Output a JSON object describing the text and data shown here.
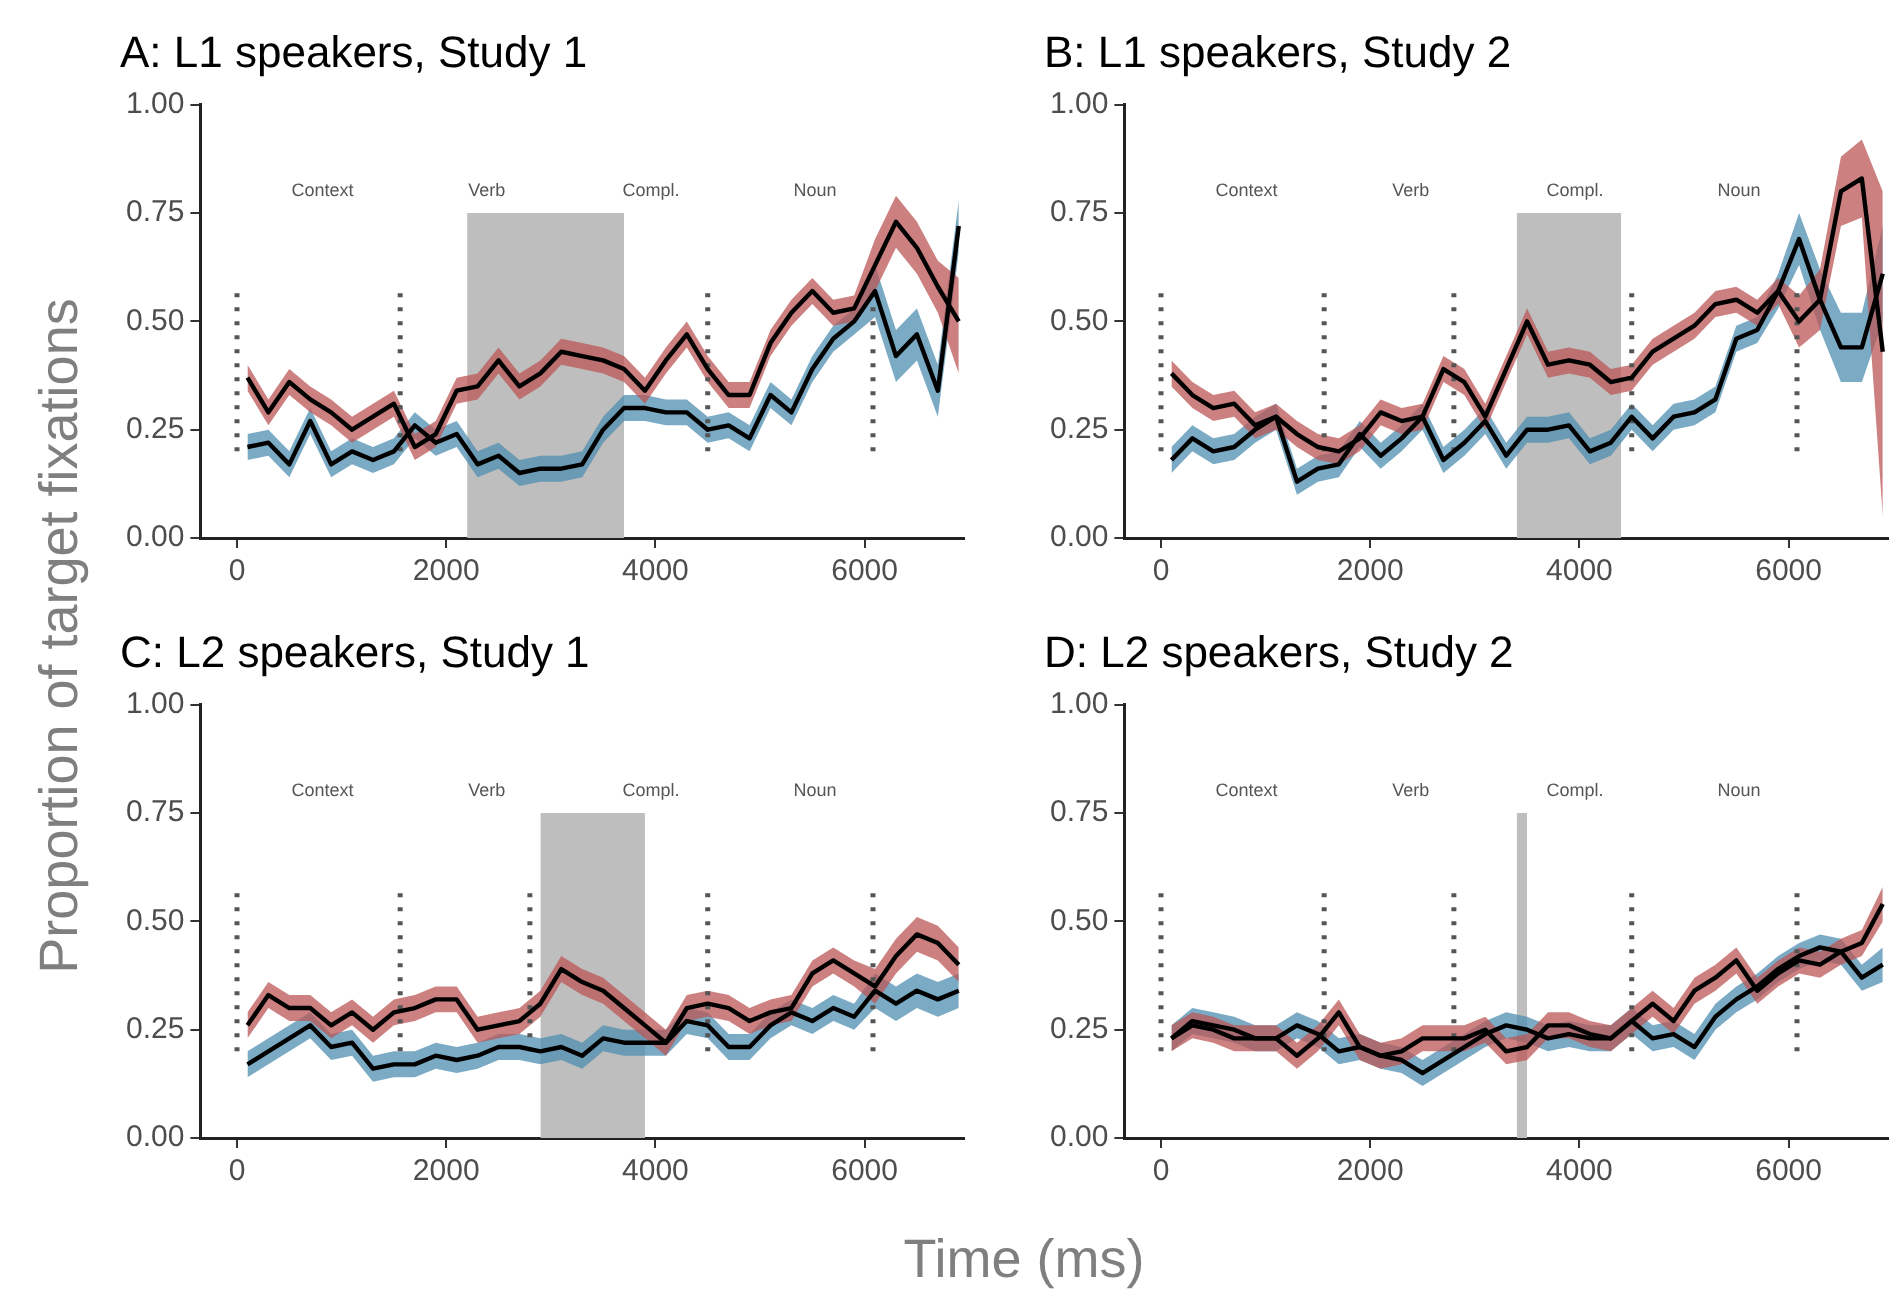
{
  "chart_data": [
    {
      "type": "line",
      "title": "A: L1 speakers, Study 1",
      "ylabel": "Proportion of target fixations",
      "xlim": [
        -350,
        6950
      ],
      "xticks": [
        0,
        2000,
        4000,
        6000
      ],
      "ylim": [
        0,
        1
      ],
      "yticks": [
        {
          "value": 0,
          "label": "0.00"
        },
        {
          "value": 0.25,
          "label": "0.25"
        },
        {
          "value": 0.5,
          "label": "0.50"
        },
        {
          "value": 0.75,
          "label": "0.75"
        },
        {
          "value": 1,
          "label": "1.00"
        }
      ],
      "x": [
        100,
        300,
        500,
        700,
        900,
        1100,
        1300,
        1500,
        1700,
        1900,
        2100,
        2300,
        2500,
        2700,
        2900,
        3100,
        3300,
        3500,
        3700,
        3900,
        4100,
        4300,
        4500,
        4700,
        4900,
        5100,
        5300,
        5500,
        5700,
        5900,
        6100,
        6300,
        6500,
        6700,
        6900
      ],
      "annotations": [
        "Context",
        "Verb",
        "Compl.",
        "Noun"
      ],
      "series": [
        {
          "type": "area",
          "color": "#bebebe",
          "x": [
            2200,
            3700
          ],
          "values": [
            0.75,
            0.75
          ]
        },
        {
          "color": "#555555",
          "line_style": "dotted",
          "x": [
            0,
            0
          ],
          "values": [
            0.2,
            0.58
          ]
        },
        {
          "color": "#555555",
          "line_style": "dotted",
          "x": [
            1560,
            1560
          ],
          "values": [
            0.2,
            0.58
          ]
        },
        {
          "color": "#555555",
          "line_style": "dotted",
          "x": [
            4500,
            4500
          ],
          "values": [
            0.2,
            0.58
          ]
        },
        {
          "color": "#555555",
          "line_style": "dotted",
          "x": [
            6080,
            6080
          ],
          "values": [
            0.2,
            0.58
          ]
        },
        {
          "color": "#000000",
          "values": [
            0.37,
            0.29,
            0.36,
            0.32,
            0.29,
            0.25,
            0.28,
            0.31,
            0.21,
            0.24,
            0.34,
            0.35,
            0.41,
            0.35,
            0.38,
            0.43,
            0.42,
            0.41,
            0.39,
            0.34,
            0.41,
            0.47,
            0.39,
            0.33,
            0.33,
            0.45,
            0.52,
            0.57,
            0.52,
            0.53,
            0.63,
            0.73,
            0.67,
            0.58,
            0.5
          ],
          "lower": [
            0.34,
            0.26,
            0.33,
            0.29,
            0.26,
            0.22,
            0.25,
            0.28,
            0.18,
            0.21,
            0.31,
            0.32,
            0.38,
            0.32,
            0.35,
            0.4,
            0.39,
            0.38,
            0.36,
            0.31,
            0.38,
            0.44,
            0.36,
            0.3,
            0.3,
            0.42,
            0.49,
            0.54,
            0.49,
            0.5,
            0.57,
            0.67,
            0.61,
            0.52,
            0.38
          ],
          "upper": [
            0.4,
            0.32,
            0.39,
            0.35,
            0.32,
            0.28,
            0.31,
            0.34,
            0.24,
            0.27,
            0.37,
            0.38,
            0.44,
            0.38,
            0.41,
            0.46,
            0.45,
            0.44,
            0.42,
            0.37,
            0.44,
            0.5,
            0.42,
            0.36,
            0.36,
            0.48,
            0.55,
            0.6,
            0.55,
            0.56,
            0.69,
            0.79,
            0.73,
            0.64,
            0.6
          ]
        },
        {
          "color": "#000000",
          "values": [
            0.21,
            0.22,
            0.17,
            0.27,
            0.17,
            0.2,
            0.18,
            0.2,
            0.26,
            0.22,
            0.24,
            0.17,
            0.19,
            0.15,
            0.16,
            0.16,
            0.17,
            0.25,
            0.3,
            0.3,
            0.29,
            0.29,
            0.25,
            0.26,
            0.23,
            0.33,
            0.29,
            0.39,
            0.46,
            0.5,
            0.57,
            0.42,
            0.47,
            0.34,
            0.72
          ],
          "lower": [
            0.18,
            0.19,
            0.14,
            0.24,
            0.14,
            0.17,
            0.15,
            0.17,
            0.23,
            0.19,
            0.21,
            0.14,
            0.16,
            0.12,
            0.13,
            0.13,
            0.14,
            0.22,
            0.27,
            0.27,
            0.26,
            0.26,
            0.22,
            0.23,
            0.2,
            0.3,
            0.26,
            0.36,
            0.43,
            0.47,
            0.51,
            0.36,
            0.41,
            0.28,
            0.66
          ],
          "upper": [
            0.24,
            0.25,
            0.2,
            0.3,
            0.2,
            0.23,
            0.21,
            0.23,
            0.29,
            0.25,
            0.27,
            0.2,
            0.22,
            0.18,
            0.19,
            0.19,
            0.2,
            0.28,
            0.33,
            0.33,
            0.32,
            0.32,
            0.28,
            0.29,
            0.26,
            0.36,
            0.32,
            0.42,
            0.49,
            0.53,
            0.63,
            0.48,
            0.53,
            0.4,
            0.78
          ]
        }
      ]
    },
    {
      "type": "line",
      "title": "B: L1 speakers, Study 2",
      "xlim": [
        -350,
        6950
      ],
      "xticks": [
        0,
        2000,
        4000,
        6000
      ],
      "ylim": [
        0,
        1
      ],
      "yticks": [
        {
          "value": 0,
          "label": "0.00"
        },
        {
          "value": 0.25,
          "label": "0.25"
        },
        {
          "value": 0.5,
          "label": "0.50"
        },
        {
          "value": 0.75,
          "label": "0.75"
        },
        {
          "value": 1,
          "label": "1.00"
        }
      ],
      "x": [
        100,
        300,
        500,
        700,
        900,
        1100,
        1300,
        1500,
        1700,
        1900,
        2100,
        2300,
        2500,
        2700,
        2900,
        3100,
        3300,
        3500,
        3700,
        3900,
        4100,
        4300,
        4500,
        4700,
        4900,
        5100,
        5300,
        5500,
        5700,
        5900,
        6100,
        6300,
        6500,
        6700,
        6900
      ],
      "annotations": [
        "Context",
        "Verb",
        "Compl.",
        "Noun"
      ],
      "series": [
        {
          "type": "area",
          "color": "#bebebe",
          "x": [
            3400,
            4400
          ],
          "values": [
            0.75,
            0.75
          ]
        },
        {
          "color": "#555555",
          "line_style": "dotted",
          "x": [
            0,
            0
          ],
          "values": [
            0.2,
            0.58
          ]
        },
        {
          "color": "#555555",
          "line_style": "dotted",
          "x": [
            1560,
            1560
          ],
          "values": [
            0.2,
            0.58
          ]
        },
        {
          "color": "#555555",
          "line_style": "dotted",
          "x": [
            2800,
            2800
          ],
          "values": [
            0.2,
            0.58
          ]
        },
        {
          "color": "#555555",
          "line_style": "dotted",
          "x": [
            4500,
            4500
          ],
          "values": [
            0.2,
            0.58
          ]
        },
        {
          "color": "#555555",
          "line_style": "dotted",
          "x": [
            6080,
            6080
          ],
          "values": [
            0.2,
            0.58
          ]
        },
        {
          "color": "#000000",
          "values": [
            0.38,
            0.33,
            0.3,
            0.31,
            0.26,
            0.28,
            0.24,
            0.21,
            0.2,
            0.23,
            0.29,
            0.27,
            0.28,
            0.39,
            0.36,
            0.28,
            0.39,
            0.5,
            0.4,
            0.41,
            0.4,
            0.36,
            0.37,
            0.43,
            0.46,
            0.49,
            0.54,
            0.55,
            0.52,
            0.57,
            0.5,
            0.55,
            0.8,
            0.83,
            0.43
          ],
          "lower": [
            0.35,
            0.3,
            0.27,
            0.28,
            0.23,
            0.25,
            0.21,
            0.18,
            0.17,
            0.2,
            0.26,
            0.24,
            0.25,
            0.36,
            0.33,
            0.25,
            0.36,
            0.47,
            0.37,
            0.38,
            0.37,
            0.33,
            0.34,
            0.4,
            0.43,
            0.46,
            0.51,
            0.52,
            0.49,
            0.54,
            0.44,
            0.48,
            0.72,
            0.74,
            0.05
          ],
          "upper": [
            0.41,
            0.36,
            0.33,
            0.34,
            0.29,
            0.31,
            0.27,
            0.24,
            0.23,
            0.26,
            0.32,
            0.3,
            0.31,
            0.42,
            0.39,
            0.31,
            0.42,
            0.53,
            0.43,
            0.44,
            0.43,
            0.39,
            0.4,
            0.46,
            0.49,
            0.52,
            0.57,
            0.58,
            0.55,
            0.6,
            0.56,
            0.62,
            0.88,
            0.92,
            0.8
          ]
        },
        {
          "color": "#000000",
          "values": [
            0.18,
            0.23,
            0.2,
            0.21,
            0.25,
            0.28,
            0.13,
            0.16,
            0.17,
            0.24,
            0.19,
            0.23,
            0.28,
            0.18,
            0.22,
            0.27,
            0.19,
            0.25,
            0.25,
            0.26,
            0.2,
            0.22,
            0.28,
            0.23,
            0.28,
            0.29,
            0.32,
            0.46,
            0.48,
            0.57,
            0.69,
            0.55,
            0.44,
            0.44,
            0.61
          ],
          "lower": [
            0.15,
            0.2,
            0.17,
            0.18,
            0.22,
            0.25,
            0.1,
            0.13,
            0.14,
            0.21,
            0.16,
            0.2,
            0.25,
            0.15,
            0.19,
            0.24,
            0.16,
            0.22,
            0.22,
            0.23,
            0.17,
            0.19,
            0.25,
            0.2,
            0.25,
            0.26,
            0.29,
            0.43,
            0.45,
            0.53,
            0.63,
            0.48,
            0.36,
            0.36,
            0.5
          ],
          "upper": [
            0.21,
            0.26,
            0.23,
            0.24,
            0.28,
            0.31,
            0.16,
            0.19,
            0.2,
            0.27,
            0.22,
            0.26,
            0.31,
            0.21,
            0.25,
            0.3,
            0.22,
            0.28,
            0.28,
            0.29,
            0.23,
            0.25,
            0.31,
            0.26,
            0.31,
            0.32,
            0.35,
            0.49,
            0.51,
            0.61,
            0.75,
            0.62,
            0.52,
            0.52,
            0.72
          ]
        }
      ]
    },
    {
      "type": "line",
      "title": "C: L2 speakers, Study 1",
      "xlabel": "Time (ms)",
      "xlim": [
        -350,
        6950
      ],
      "xticks": [
        0,
        2000,
        4000,
        6000
      ],
      "ylim": [
        0,
        1
      ],
      "yticks": [
        {
          "value": 0,
          "label": "0.00"
        },
        {
          "value": 0.25,
          "label": "0.25"
        },
        {
          "value": 0.5,
          "label": "0.50"
        },
        {
          "value": 0.75,
          "label": "0.75"
        },
        {
          "value": 1,
          "label": "1.00"
        }
      ],
      "x": [
        100,
        300,
        500,
        700,
        900,
        1100,
        1300,
        1500,
        1700,
        1900,
        2100,
        2300,
        2500,
        2700,
        2900,
        3100,
        3300,
        3500,
        3700,
        3900,
        4100,
        4300,
        4500,
        4700,
        4900,
        5100,
        5300,
        5500,
        5700,
        5900,
        6100,
        6300,
        6500,
        6700,
        6900
      ],
      "annotations": [
        "Context",
        "Verb",
        "Compl.",
        "Noun"
      ],
      "series": [
        {
          "type": "area",
          "color": "#bebebe",
          "x": [
            2900,
            3900
          ],
          "values": [
            0.75,
            0.75
          ]
        },
        {
          "color": "#555555",
          "line_style": "dotted",
          "x": [
            0,
            0
          ],
          "values": [
            0.2,
            0.58
          ]
        },
        {
          "color": "#555555",
          "line_style": "dotted",
          "x": [
            1560,
            1560
          ],
          "values": [
            0.2,
            0.58
          ]
        },
        {
          "color": "#555555",
          "line_style": "dotted",
          "x": [
            2800,
            2800
          ],
          "values": [
            0.2,
            0.58
          ]
        },
        {
          "color": "#555555",
          "line_style": "dotted",
          "x": [
            4500,
            4500
          ],
          "values": [
            0.2,
            0.58
          ]
        },
        {
          "color": "#555555",
          "line_style": "dotted",
          "x": [
            6080,
            6080
          ],
          "values": [
            0.2,
            0.58
          ]
        },
        {
          "color": "#000000",
          "values": [
            0.26,
            0.33,
            0.3,
            0.3,
            0.26,
            0.29,
            0.25,
            0.29,
            0.3,
            0.32,
            0.32,
            0.25,
            0.26,
            0.27,
            0.31,
            0.39,
            0.36,
            0.34,
            0.3,
            0.26,
            0.22,
            0.3,
            0.31,
            0.3,
            0.27,
            0.29,
            0.3,
            0.38,
            0.41,
            0.38,
            0.35,
            0.42,
            0.47,
            0.45,
            0.4
          ],
          "lower": [
            0.23,
            0.3,
            0.27,
            0.27,
            0.23,
            0.26,
            0.22,
            0.26,
            0.27,
            0.29,
            0.29,
            0.22,
            0.23,
            0.24,
            0.28,
            0.36,
            0.33,
            0.31,
            0.27,
            0.23,
            0.19,
            0.27,
            0.28,
            0.27,
            0.24,
            0.26,
            0.27,
            0.35,
            0.38,
            0.35,
            0.31,
            0.38,
            0.43,
            0.41,
            0.36
          ],
          "upper": [
            0.29,
            0.36,
            0.33,
            0.33,
            0.29,
            0.32,
            0.28,
            0.32,
            0.33,
            0.35,
            0.35,
            0.28,
            0.29,
            0.3,
            0.34,
            0.42,
            0.39,
            0.37,
            0.33,
            0.29,
            0.25,
            0.33,
            0.34,
            0.33,
            0.3,
            0.32,
            0.33,
            0.41,
            0.44,
            0.41,
            0.39,
            0.46,
            0.51,
            0.49,
            0.44
          ]
        },
        {
          "color": "#000000",
          "values": [
            0.17,
            0.2,
            0.23,
            0.26,
            0.21,
            0.22,
            0.16,
            0.17,
            0.17,
            0.19,
            0.18,
            0.19,
            0.21,
            0.21,
            0.2,
            0.21,
            0.19,
            0.23,
            0.22,
            0.22,
            0.22,
            0.27,
            0.26,
            0.21,
            0.21,
            0.26,
            0.29,
            0.27,
            0.3,
            0.28,
            0.34,
            0.31,
            0.34,
            0.32,
            0.34
          ],
          "lower": [
            0.14,
            0.17,
            0.2,
            0.23,
            0.18,
            0.19,
            0.13,
            0.14,
            0.14,
            0.16,
            0.15,
            0.16,
            0.18,
            0.18,
            0.17,
            0.18,
            0.16,
            0.2,
            0.19,
            0.19,
            0.19,
            0.24,
            0.23,
            0.18,
            0.18,
            0.23,
            0.26,
            0.24,
            0.27,
            0.25,
            0.3,
            0.27,
            0.3,
            0.28,
            0.3
          ],
          "upper": [
            0.2,
            0.23,
            0.26,
            0.29,
            0.24,
            0.25,
            0.19,
            0.2,
            0.2,
            0.22,
            0.21,
            0.22,
            0.24,
            0.24,
            0.23,
            0.24,
            0.22,
            0.26,
            0.25,
            0.25,
            0.25,
            0.3,
            0.29,
            0.24,
            0.24,
            0.29,
            0.32,
            0.3,
            0.33,
            0.31,
            0.38,
            0.35,
            0.38,
            0.36,
            0.38
          ]
        }
      ]
    },
    {
      "type": "line",
      "title": "D: L2 speakers, Study 2",
      "xlim": [
        -350,
        6950
      ],
      "xticks": [
        0,
        2000,
        4000,
        6000
      ],
      "ylim": [
        0,
        1
      ],
      "yticks": [
        {
          "value": 0,
          "label": "0.00"
        },
        {
          "value": 0.25,
          "label": "0.25"
        },
        {
          "value": 0.5,
          "label": "0.50"
        },
        {
          "value": 0.75,
          "label": "0.75"
        },
        {
          "value": 1,
          "label": "1.00"
        }
      ],
      "x": [
        100,
        300,
        500,
        700,
        900,
        1100,
        1300,
        1500,
        1700,
        1900,
        2100,
        2300,
        2500,
        2700,
        2900,
        3100,
        3300,
        3500,
        3700,
        3900,
        4100,
        4300,
        4500,
        4700,
        4900,
        5100,
        5300,
        5500,
        5700,
        5900,
        6100,
        6300,
        6500,
        6700,
        6900
      ],
      "annotations": [
        "Context",
        "Verb",
        "Compl.",
        "Noun"
      ],
      "series": [
        {
          "type": "area",
          "color": "#bebebe",
          "x": [
            3400,
            3500
          ],
          "values": [
            0.75,
            0.75
          ]
        },
        {
          "color": "#555555",
          "line_style": "dotted",
          "x": [
            0,
            0
          ],
          "values": [
            0.2,
            0.58
          ]
        },
        {
          "color": "#555555",
          "line_style": "dotted",
          "x": [
            1560,
            1560
          ],
          "values": [
            0.2,
            0.58
          ]
        },
        {
          "color": "#555555",
          "line_style": "dotted",
          "x": [
            2800,
            2800
          ],
          "values": [
            0.2,
            0.58
          ]
        },
        {
          "color": "#555555",
          "line_style": "dotted",
          "x": [
            4500,
            4500
          ],
          "values": [
            0.2,
            0.58
          ]
        },
        {
          "color": "#555555",
          "line_style": "dotted",
          "x": [
            6080,
            6080
          ],
          "values": [
            0.2,
            0.58
          ]
        },
        {
          "color": "#000000",
          "values": [
            0.23,
            0.26,
            0.25,
            0.23,
            0.23,
            0.23,
            0.19,
            0.23,
            0.29,
            0.21,
            0.19,
            0.2,
            0.23,
            0.23,
            0.23,
            0.25,
            0.2,
            0.21,
            0.26,
            0.26,
            0.24,
            0.23,
            0.27,
            0.31,
            0.27,
            0.34,
            0.37,
            0.41,
            0.34,
            0.38,
            0.41,
            0.4,
            0.43,
            0.45,
            0.54
          ],
          "lower": [
            0.2,
            0.23,
            0.22,
            0.2,
            0.2,
            0.2,
            0.16,
            0.2,
            0.26,
            0.18,
            0.16,
            0.17,
            0.2,
            0.2,
            0.2,
            0.22,
            0.17,
            0.18,
            0.23,
            0.23,
            0.21,
            0.2,
            0.24,
            0.28,
            0.24,
            0.31,
            0.34,
            0.38,
            0.31,
            0.35,
            0.38,
            0.37,
            0.4,
            0.42,
            0.5
          ],
          "upper": [
            0.26,
            0.29,
            0.28,
            0.26,
            0.26,
            0.26,
            0.22,
            0.26,
            0.32,
            0.24,
            0.22,
            0.23,
            0.26,
            0.26,
            0.26,
            0.28,
            0.23,
            0.24,
            0.29,
            0.29,
            0.27,
            0.26,
            0.3,
            0.34,
            0.3,
            0.37,
            0.4,
            0.44,
            0.37,
            0.41,
            0.44,
            0.43,
            0.46,
            0.48,
            0.58
          ]
        },
        {
          "color": "#000000",
          "values": [
            0.23,
            0.27,
            0.26,
            0.25,
            0.23,
            0.23,
            0.26,
            0.24,
            0.2,
            0.21,
            0.19,
            0.18,
            0.15,
            0.18,
            0.21,
            0.24,
            0.26,
            0.25,
            0.23,
            0.24,
            0.23,
            0.23,
            0.27,
            0.23,
            0.24,
            0.21,
            0.28,
            0.32,
            0.35,
            0.39,
            0.42,
            0.44,
            0.43,
            0.37,
            0.4
          ],
          "lower": [
            0.2,
            0.24,
            0.23,
            0.22,
            0.2,
            0.2,
            0.23,
            0.21,
            0.17,
            0.18,
            0.16,
            0.15,
            0.12,
            0.15,
            0.18,
            0.21,
            0.23,
            0.22,
            0.2,
            0.21,
            0.2,
            0.2,
            0.24,
            0.2,
            0.21,
            0.18,
            0.25,
            0.29,
            0.32,
            0.36,
            0.39,
            0.41,
            0.4,
            0.34,
            0.36
          ],
          "upper": [
            0.26,
            0.3,
            0.29,
            0.28,
            0.26,
            0.26,
            0.29,
            0.27,
            0.23,
            0.24,
            0.22,
            0.21,
            0.18,
            0.21,
            0.24,
            0.27,
            0.29,
            0.28,
            0.26,
            0.27,
            0.26,
            0.26,
            0.3,
            0.26,
            0.27,
            0.24,
            0.31,
            0.35,
            0.38,
            0.42,
            0.45,
            0.47,
            0.46,
            0.4,
            0.44
          ]
        }
      ]
    }
  ]
}
